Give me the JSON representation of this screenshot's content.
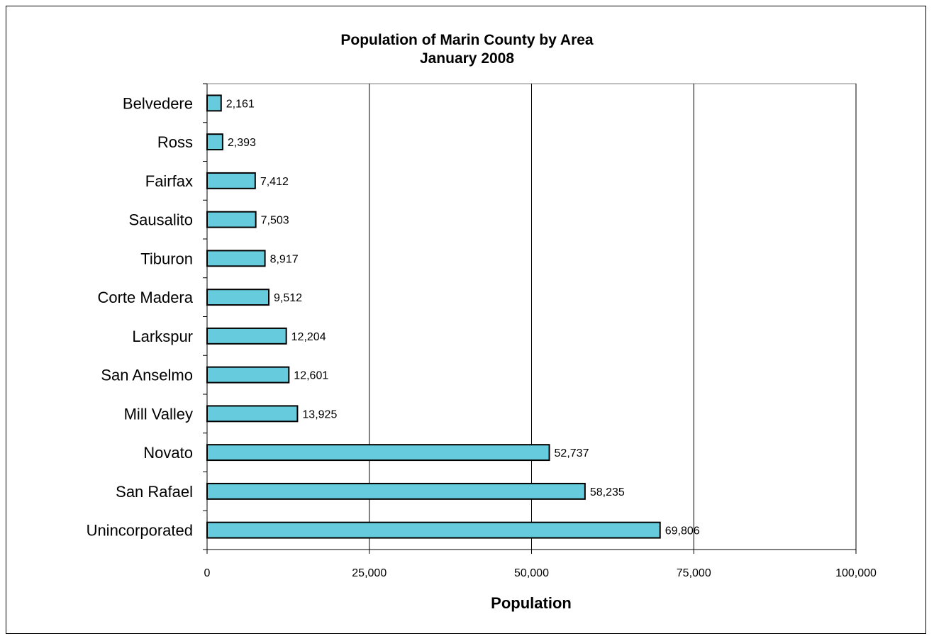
{
  "chart_data": {
    "type": "bar",
    "orientation": "horizontal",
    "title": "Population of Marin County by Area",
    "subtitle": "January 2008",
    "xlabel": "Population",
    "ylabel": "",
    "xlim": [
      0,
      100000
    ],
    "x_ticks": [
      "0",
      "25,000",
      "50,000",
      "75,000",
      "100,000"
    ],
    "x_tick_values": [
      0,
      25000,
      50000,
      75000,
      100000
    ],
    "grid": "vertical",
    "legend": "none",
    "categories": [
      "Belvedere",
      "Ross",
      "Fairfax",
      "Sausalito",
      "Tiburon",
      "Corte Madera",
      "Larkspur",
      "San Anselmo",
      "Mill Valley",
      "Novato",
      "San Rafael",
      "Unincorporated"
    ],
    "values": [
      2161,
      2393,
      7412,
      7503,
      8917,
      9512,
      12204,
      12601,
      13925,
      52737,
      58235,
      69806
    ],
    "value_labels": [
      "2,161",
      "2,393",
      "7,412",
      "7,503",
      "8,917",
      "9,512",
      "12,204",
      "12,601",
      "13,925",
      "52,737",
      "58,235",
      "69,806"
    ],
    "bar_color": "#66CCDD",
    "bar_edge_color": "#000000"
  }
}
